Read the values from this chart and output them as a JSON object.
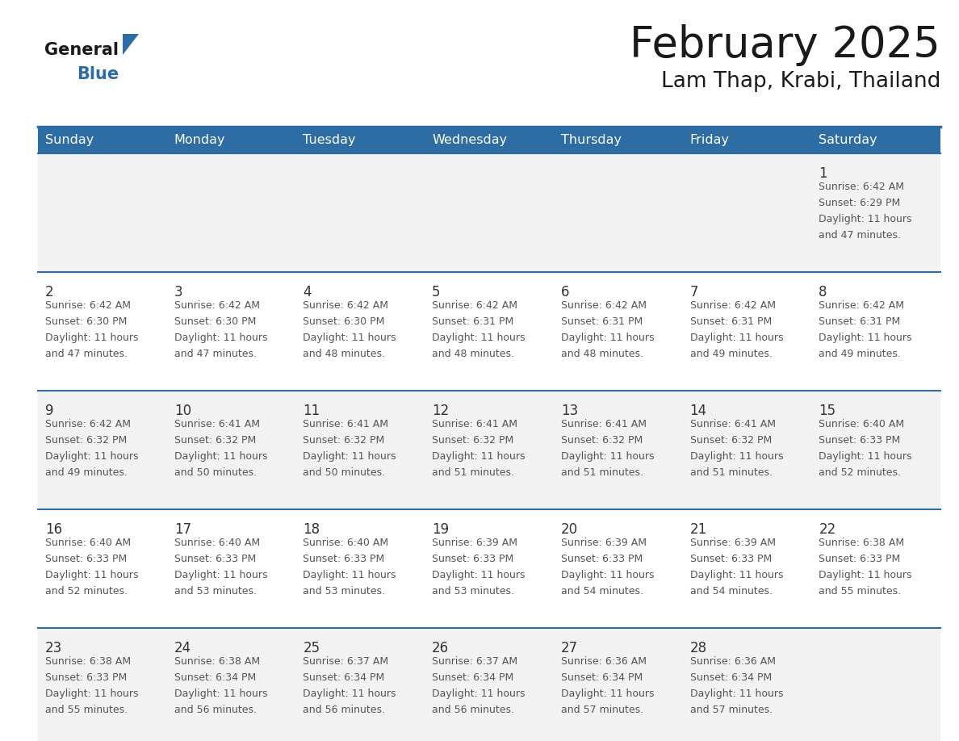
{
  "title": "February 2025",
  "subtitle": "Lam Thap, Krabi, Thailand",
  "days_of_week": [
    "Sunday",
    "Monday",
    "Tuesday",
    "Wednesday",
    "Thursday",
    "Friday",
    "Saturday"
  ],
  "header_bg": "#2E6DA4",
  "header_text": "#FFFFFF",
  "cell_bg_odd": "#F2F2F2",
  "cell_bg_even": "#FFFFFF",
  "text_color": "#555555",
  "day_num_color": "#333333",
  "line_color": "#2E6DA4",
  "title_color": "#1a1a1a",
  "logo_black": "#1a1a1a",
  "logo_blue": "#2E6DA4",
  "calendar_data": [
    [
      null,
      null,
      null,
      null,
      null,
      null,
      {
        "day": 1,
        "sunrise": "6:42 AM",
        "sunset": "6:29 PM",
        "daylight": "11 hours",
        "daylight2": "and 47 minutes."
      }
    ],
    [
      {
        "day": 2,
        "sunrise": "6:42 AM",
        "sunset": "6:30 PM",
        "daylight": "11 hours",
        "daylight2": "and 47 minutes."
      },
      {
        "day": 3,
        "sunrise": "6:42 AM",
        "sunset": "6:30 PM",
        "daylight": "11 hours",
        "daylight2": "and 47 minutes."
      },
      {
        "day": 4,
        "sunrise": "6:42 AM",
        "sunset": "6:30 PM",
        "daylight": "11 hours",
        "daylight2": "and 48 minutes."
      },
      {
        "day": 5,
        "sunrise": "6:42 AM",
        "sunset": "6:31 PM",
        "daylight": "11 hours",
        "daylight2": "and 48 minutes."
      },
      {
        "day": 6,
        "sunrise": "6:42 AM",
        "sunset": "6:31 PM",
        "daylight": "11 hours",
        "daylight2": "and 48 minutes."
      },
      {
        "day": 7,
        "sunrise": "6:42 AM",
        "sunset": "6:31 PM",
        "daylight": "11 hours",
        "daylight2": "and 49 minutes."
      },
      {
        "day": 8,
        "sunrise": "6:42 AM",
        "sunset": "6:31 PM",
        "daylight": "11 hours",
        "daylight2": "and 49 minutes."
      }
    ],
    [
      {
        "day": 9,
        "sunrise": "6:42 AM",
        "sunset": "6:32 PM",
        "daylight": "11 hours",
        "daylight2": "and 49 minutes."
      },
      {
        "day": 10,
        "sunrise": "6:41 AM",
        "sunset": "6:32 PM",
        "daylight": "11 hours",
        "daylight2": "and 50 minutes."
      },
      {
        "day": 11,
        "sunrise": "6:41 AM",
        "sunset": "6:32 PM",
        "daylight": "11 hours",
        "daylight2": "and 50 minutes."
      },
      {
        "day": 12,
        "sunrise": "6:41 AM",
        "sunset": "6:32 PM",
        "daylight": "11 hours",
        "daylight2": "and 51 minutes."
      },
      {
        "day": 13,
        "sunrise": "6:41 AM",
        "sunset": "6:32 PM",
        "daylight": "11 hours",
        "daylight2": "and 51 minutes."
      },
      {
        "day": 14,
        "sunrise": "6:41 AM",
        "sunset": "6:32 PM",
        "daylight": "11 hours",
        "daylight2": "and 51 minutes."
      },
      {
        "day": 15,
        "sunrise": "6:40 AM",
        "sunset": "6:33 PM",
        "daylight": "11 hours",
        "daylight2": "and 52 minutes."
      }
    ],
    [
      {
        "day": 16,
        "sunrise": "6:40 AM",
        "sunset": "6:33 PM",
        "daylight": "11 hours",
        "daylight2": "and 52 minutes."
      },
      {
        "day": 17,
        "sunrise": "6:40 AM",
        "sunset": "6:33 PM",
        "daylight": "11 hours",
        "daylight2": "and 53 minutes."
      },
      {
        "day": 18,
        "sunrise": "6:40 AM",
        "sunset": "6:33 PM",
        "daylight": "11 hours",
        "daylight2": "and 53 minutes."
      },
      {
        "day": 19,
        "sunrise": "6:39 AM",
        "sunset": "6:33 PM",
        "daylight": "11 hours",
        "daylight2": "and 53 minutes."
      },
      {
        "day": 20,
        "sunrise": "6:39 AM",
        "sunset": "6:33 PM",
        "daylight": "11 hours",
        "daylight2": "and 54 minutes."
      },
      {
        "day": 21,
        "sunrise": "6:39 AM",
        "sunset": "6:33 PM",
        "daylight": "11 hours",
        "daylight2": "and 54 minutes."
      },
      {
        "day": 22,
        "sunrise": "6:38 AM",
        "sunset": "6:33 PM",
        "daylight": "11 hours",
        "daylight2": "and 55 minutes."
      }
    ],
    [
      {
        "day": 23,
        "sunrise": "6:38 AM",
        "sunset": "6:33 PM",
        "daylight": "11 hours",
        "daylight2": "and 55 minutes."
      },
      {
        "day": 24,
        "sunrise": "6:38 AM",
        "sunset": "6:34 PM",
        "daylight": "11 hours",
        "daylight2": "and 56 minutes."
      },
      {
        "day": 25,
        "sunrise": "6:37 AM",
        "sunset": "6:34 PM",
        "daylight": "11 hours",
        "daylight2": "and 56 minutes."
      },
      {
        "day": 26,
        "sunrise": "6:37 AM",
        "sunset": "6:34 PM",
        "daylight": "11 hours",
        "daylight2": "and 56 minutes."
      },
      {
        "day": 27,
        "sunrise": "6:36 AM",
        "sunset": "6:34 PM",
        "daylight": "11 hours",
        "daylight2": "and 57 minutes."
      },
      {
        "day": 28,
        "sunrise": "6:36 AM",
        "sunset": "6:34 PM",
        "daylight": "11 hours",
        "daylight2": "and 57 minutes."
      },
      null
    ]
  ],
  "figsize": [
    11.88,
    9.18
  ],
  "dpi": 100
}
